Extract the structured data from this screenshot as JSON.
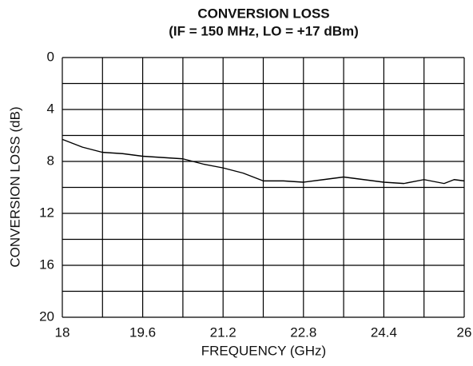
{
  "chart_data": {
    "type": "line",
    "title": [
      "CONVERSION LOSS",
      "(IF = 150 MHz, LO = +17 dBm)"
    ],
    "xlabel": "FREQUENCY (GHz)",
    "ylabel": "CONVERSION LOSS (dB)",
    "x": [
      18,
      18.4,
      18.8,
      19.2,
      19.6,
      20.0,
      20.4,
      20.8,
      21.2,
      21.6,
      22.0,
      22.4,
      22.8,
      23.2,
      23.6,
      24.0,
      24.4,
      24.8,
      25.2,
      25.6,
      25.8,
      26
    ],
    "series": [
      {
        "color": "#000000",
        "values": [
          6.3,
          6.9,
          7.3,
          7.4,
          7.6,
          7.7,
          7.8,
          8.2,
          8.5,
          8.9,
          9.5,
          9.5,
          9.6,
          9.4,
          9.2,
          9.4,
          9.6,
          9.7,
          9.4,
          9.7,
          9.4,
          9.5
        ]
      }
    ],
    "xlim": [
      18,
      26
    ],
    "xticks": [
      18,
      19.6,
      21.2,
      22.8,
      24.4,
      26
    ],
    "xgrid": [
      18,
      18.8,
      19.6,
      20.4,
      21.2,
      22.0,
      22.8,
      23.6,
      24.4,
      25.2,
      26
    ],
    "ylim": [
      20,
      0
    ],
    "yticks": [
      0,
      4,
      8,
      12,
      16,
      20
    ],
    "ygrid": [
      0,
      2,
      4,
      6,
      8,
      10,
      12,
      14,
      16,
      18,
      20
    ],
    "grid": true
  }
}
